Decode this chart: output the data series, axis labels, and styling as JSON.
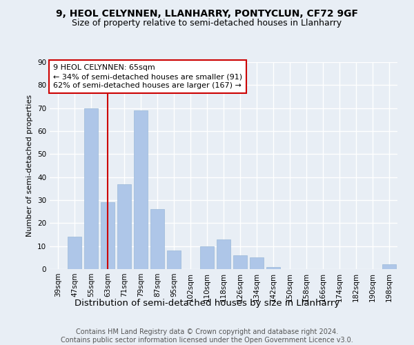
{
  "title1": "9, HEOL CELYNNEN, LLANHARRY, PONTYCLUN, CF72 9GF",
  "title2": "Size of property relative to semi-detached houses in Llanharry",
  "xlabel": "Distribution of semi-detached houses by size in Llanharry",
  "ylabel": "Number of semi-detached properties",
  "categories": [
    "39sqm",
    "47sqm",
    "55sqm",
    "63sqm",
    "71sqm",
    "79sqm",
    "87sqm",
    "95sqm",
    "102sqm",
    "110sqm",
    "118sqm",
    "126sqm",
    "134sqm",
    "142sqm",
    "150sqm",
    "158sqm",
    "166sqm",
    "174sqm",
    "182sqm",
    "190sqm",
    "198sqm"
  ],
  "values": [
    0,
    14,
    70,
    29,
    37,
    69,
    26,
    8,
    0,
    10,
    13,
    6,
    5,
    1,
    0,
    0,
    0,
    0,
    0,
    0,
    2
  ],
  "bar_color": "#aec6e8",
  "bar_edge_color": "#9ab8d8",
  "annotation_text": "9 HEOL CELYNNEN: 65sqm\n← 34% of semi-detached houses are smaller (91)\n62% of semi-detached houses are larger (167) →",
  "annotation_box_color": "#ffffff",
  "annotation_box_edge": "#cc0000",
  "vline_color": "#cc0000",
  "vline_x": 3.0,
  "ylim": [
    0,
    90
  ],
  "yticks": [
    0,
    10,
    20,
    30,
    40,
    50,
    60,
    70,
    80,
    90
  ],
  "background_color": "#e8eef5",
  "plot_bg_color": "#e8eef5",
  "grid_color": "#ffffff",
  "footer": "Contains HM Land Registry data © Crown copyright and database right 2024.\nContains public sector information licensed under the Open Government Licence v3.0.",
  "title1_fontsize": 10,
  "title2_fontsize": 9,
  "xlabel_fontsize": 9.5,
  "ylabel_fontsize": 8,
  "tick_fontsize": 7.5,
  "annotation_fontsize": 8,
  "footer_fontsize": 7
}
